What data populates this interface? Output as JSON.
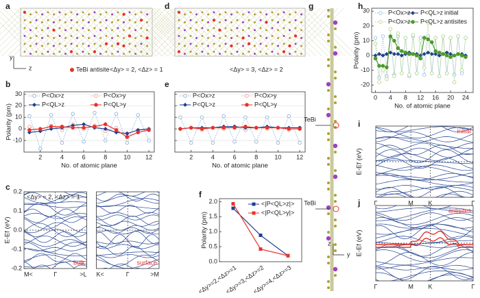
{
  "chart_data": [
    {
      "type": "structure",
      "label": "a",
      "axes": [
        "y",
        "z"
      ],
      "legend": "TeBi antisite",
      "annotation": "<Δy> = 2, <Δz> = 1"
    },
    {
      "type": "line",
      "label": "b",
      "xlabel": "No. of atomic plane",
      "ylabel": "Polarity (pm)",
      "x": [
        1,
        2,
        3,
        4,
        5,
        6,
        7,
        8,
        9,
        10,
        11,
        12
      ],
      "xlim": [
        0.5,
        12.5
      ],
      "xticks": [
        2,
        4,
        6,
        8,
        10,
        12
      ],
      "ylim": [
        -20,
        32
      ],
      "yticks": [
        -10,
        0,
        10,
        20,
        30
      ],
      "grid": true,
      "series": [
        {
          "name": "P<Ox>z",
          "color": "#8fb3d9",
          "linestyle": "dotted",
          "marker": "open-circle",
          "values": [
            11,
            -17,
            12,
            -12,
            13,
            -11,
            14,
            -10,
            13,
            -12,
            12,
            -10
          ]
        },
        {
          "name": "P<Ox>y",
          "color": "#f0a090",
          "linestyle": "dotted",
          "marker": "open-circle",
          "values": [
            2,
            -1,
            3,
            -1,
            4,
            0,
            3,
            -2,
            1,
            -4,
            -1,
            -1
          ]
        },
        {
          "name": "P<QL>z",
          "color": "#1f3f8f",
          "linestyle": "solid",
          "marker": "diamond",
          "values": [
            -3,
            -2,
            0,
            1,
            3,
            4,
            1,
            0,
            -3,
            -4,
            -1,
            0
          ]
        },
        {
          "name": "P<QL>y",
          "color": "#e8322a",
          "linestyle": "solid",
          "marker": "circle",
          "values": [
            -1,
            0,
            2,
            2,
            1,
            1,
            2,
            4,
            -1,
            -7,
            -3,
            -1
          ]
        }
      ]
    },
    {
      "type": "band",
      "label": "c",
      "ylabel": "E-Ef (eV)",
      "annotation": "<Δy> = 2, <Δz> = 1",
      "ylim": [
        -0.2,
        0.2
      ],
      "yticks": [
        -0.2,
        -0.1,
        {
          "value": 0,
          "label": "0.0"
        },
        0.1,
        0.2
      ],
      "panels": [
        {
          "xticks": [
            "M<",
            "Γ",
            ">L"
          ],
          "annotation": "bulk"
        },
        {
          "xticks": [
            "K<",
            "Γ",
            ">M"
          ],
          "annotation": "surface"
        }
      ]
    },
    {
      "type": "structure",
      "label": "d",
      "annotation": "<Δy> = 3, <Δz> = 2"
    },
    {
      "type": "line",
      "label": "e",
      "xlabel": "No. of atomic plane",
      "x": [
        1,
        2,
        3,
        4,
        5,
        6,
        7,
        8,
        9,
        10,
        11,
        12
      ],
      "xlim": [
        0.5,
        12.5
      ],
      "xticks": [
        2,
        4,
        6,
        8,
        10,
        12
      ],
      "ylim": [
        -20,
        32
      ],
      "yticks": [
        -10,
        0,
        10,
        20,
        30
      ],
      "ytick_labels": false,
      "grid": true,
      "series": [
        {
          "name": "P<Ox>z",
          "color": "#8fb3d9",
          "linestyle": "dotted",
          "marker": "open-circle",
          "values": [
            10,
            -12,
            10,
            -12,
            11,
            -11,
            10,
            -11,
            10,
            -12,
            11,
            -12
          ]
        },
        {
          "name": "P<Ox>y",
          "color": "#f0a090",
          "linestyle": "dotted",
          "marker": "open-circle",
          "values": [
            0,
            1,
            -1,
            1,
            0,
            2,
            -1,
            1,
            0,
            1,
            -1,
            1
          ]
        },
        {
          "name": "P<QL>z",
          "color": "#1f3f8f",
          "linestyle": "solid",
          "marker": "diamond",
          "values": [
            0,
            1,
            1,
            1,
            2,
            2,
            1,
            1,
            2,
            1,
            1,
            1
          ]
        },
        {
          "name": "P<QL>y",
          "color": "#e8322a",
          "linestyle": "solid",
          "marker": "circle",
          "values": [
            0,
            1,
            0,
            1,
            1,
            1,
            2,
            1,
            1,
            1,
            0,
            0
          ]
        }
      ]
    },
    {
      "type": "line",
      "label": "f",
      "ylabel": "Polarity (pm)",
      "categories": [
        "<Δy>=2,<Δz>=1",
        "<Δy>=3,<Δz>=2",
        "<Δy>=4,<Δz>=3"
      ],
      "ylim": [
        0,
        2.1
      ],
      "yticks": [
        {
          "value": 0,
          "label": "0.0"
        },
        0.5,
        {
          "value": 1,
          "label": "1.0"
        },
        1.5,
        {
          "value": 2,
          "label": "2.0"
        }
      ],
      "series": [
        {
          "name": "<|P<QL>z|>",
          "color": "#1f3f8f",
          "linestyle": "solid",
          "marker": "square",
          "values": [
            1.78,
            0.88,
            0.2
          ]
        },
        {
          "name": "<|P<QL>y|>",
          "color": "#e8322a",
          "linestyle": "solid",
          "marker": "square",
          "values": [
            1.93,
            0.42,
            0.2
          ]
        }
      ]
    },
    {
      "type": "structure",
      "label": "g",
      "labels": [
        "TeBi",
        "TeBi"
      ],
      "axes": [
        "z",
        "y"
      ]
    },
    {
      "type": "line",
      "label": "h",
      "xlabel": "No. of atomic plane",
      "ylabel": "Polarity (pm)",
      "annotations": [
        "initial",
        "antisites"
      ],
      "x": [
        0,
        1,
        2,
        3,
        4,
        5,
        6,
        7,
        8,
        9,
        10,
        11,
        12,
        13,
        14,
        15,
        16,
        17,
        18,
        19,
        20,
        21,
        22,
        23,
        24
      ],
      "xlim": [
        -1,
        26
      ],
      "xticks": [
        0,
        4,
        8,
        12,
        16,
        20,
        24
      ],
      "ylim": [
        -25,
        32
      ],
      "yticks": [
        -20,
        -10,
        0,
        10,
        20,
        30
      ],
      "series": [
        {
          "name": "P<Ox>z",
          "color": "#9ec0e0",
          "linestyle": "dotted",
          "marker": "open-circle",
          "values": [
            12,
            -15,
            13,
            -14,
            12,
            -13,
            13,
            -12,
            12,
            -14,
            13,
            -12,
            12,
            -13,
            13,
            -12,
            12,
            -14,
            13,
            -12,
            12,
            -13,
            13,
            -12,
            12
          ]
        },
        {
          "name": "P<QL>z",
          "color": "#1f3f8f",
          "linestyle": "solid",
          "marker": "diamond",
          "values": [
            0,
            1,
            0,
            1,
            2,
            1,
            1,
            0,
            1,
            2,
            1,
            1,
            0,
            1,
            2,
            1,
            1,
            0,
            1,
            2,
            1,
            0,
            1,
            1,
            0
          ]
        },
        {
          "name": "P<Ox>z",
          "color": "#b5d88f",
          "linestyle": "dotted",
          "marker": "open-circle",
          "values": [
            8,
            -18,
            -10,
            -16,
            18,
            -14,
            15,
            -12,
            12,
            -13,
            14,
            -12,
            10,
            -8,
            22,
            -12,
            12,
            -14,
            13,
            -12,
            12,
            -18,
            13,
            -10,
            12
          ]
        },
        {
          "name": "P<QL>z",
          "color": "#4c9a2a",
          "linestyle": "solid",
          "marker": "circle",
          "values": [
            -2,
            -7,
            -7,
            -8,
            13,
            10,
            5,
            3,
            2,
            1,
            1,
            0,
            -2,
            12,
            11,
            9,
            3,
            2,
            1,
            0,
            -1,
            0,
            1,
            0,
            -1
          ]
        }
      ]
    },
    {
      "type": "band",
      "label": "i",
      "ylabel": "E-Ef (eV)",
      "xticks": [
        "Γ",
        "M",
        "K",
        "Γ"
      ],
      "annotation": "initial"
    },
    {
      "type": "band",
      "label": "j",
      "ylabel": "E-Ef (eV)",
      "xticks": [
        "Γ",
        "M",
        "K",
        "Γ"
      ],
      "annotation": "antisites",
      "highlight": "#e8322a"
    }
  ]
}
